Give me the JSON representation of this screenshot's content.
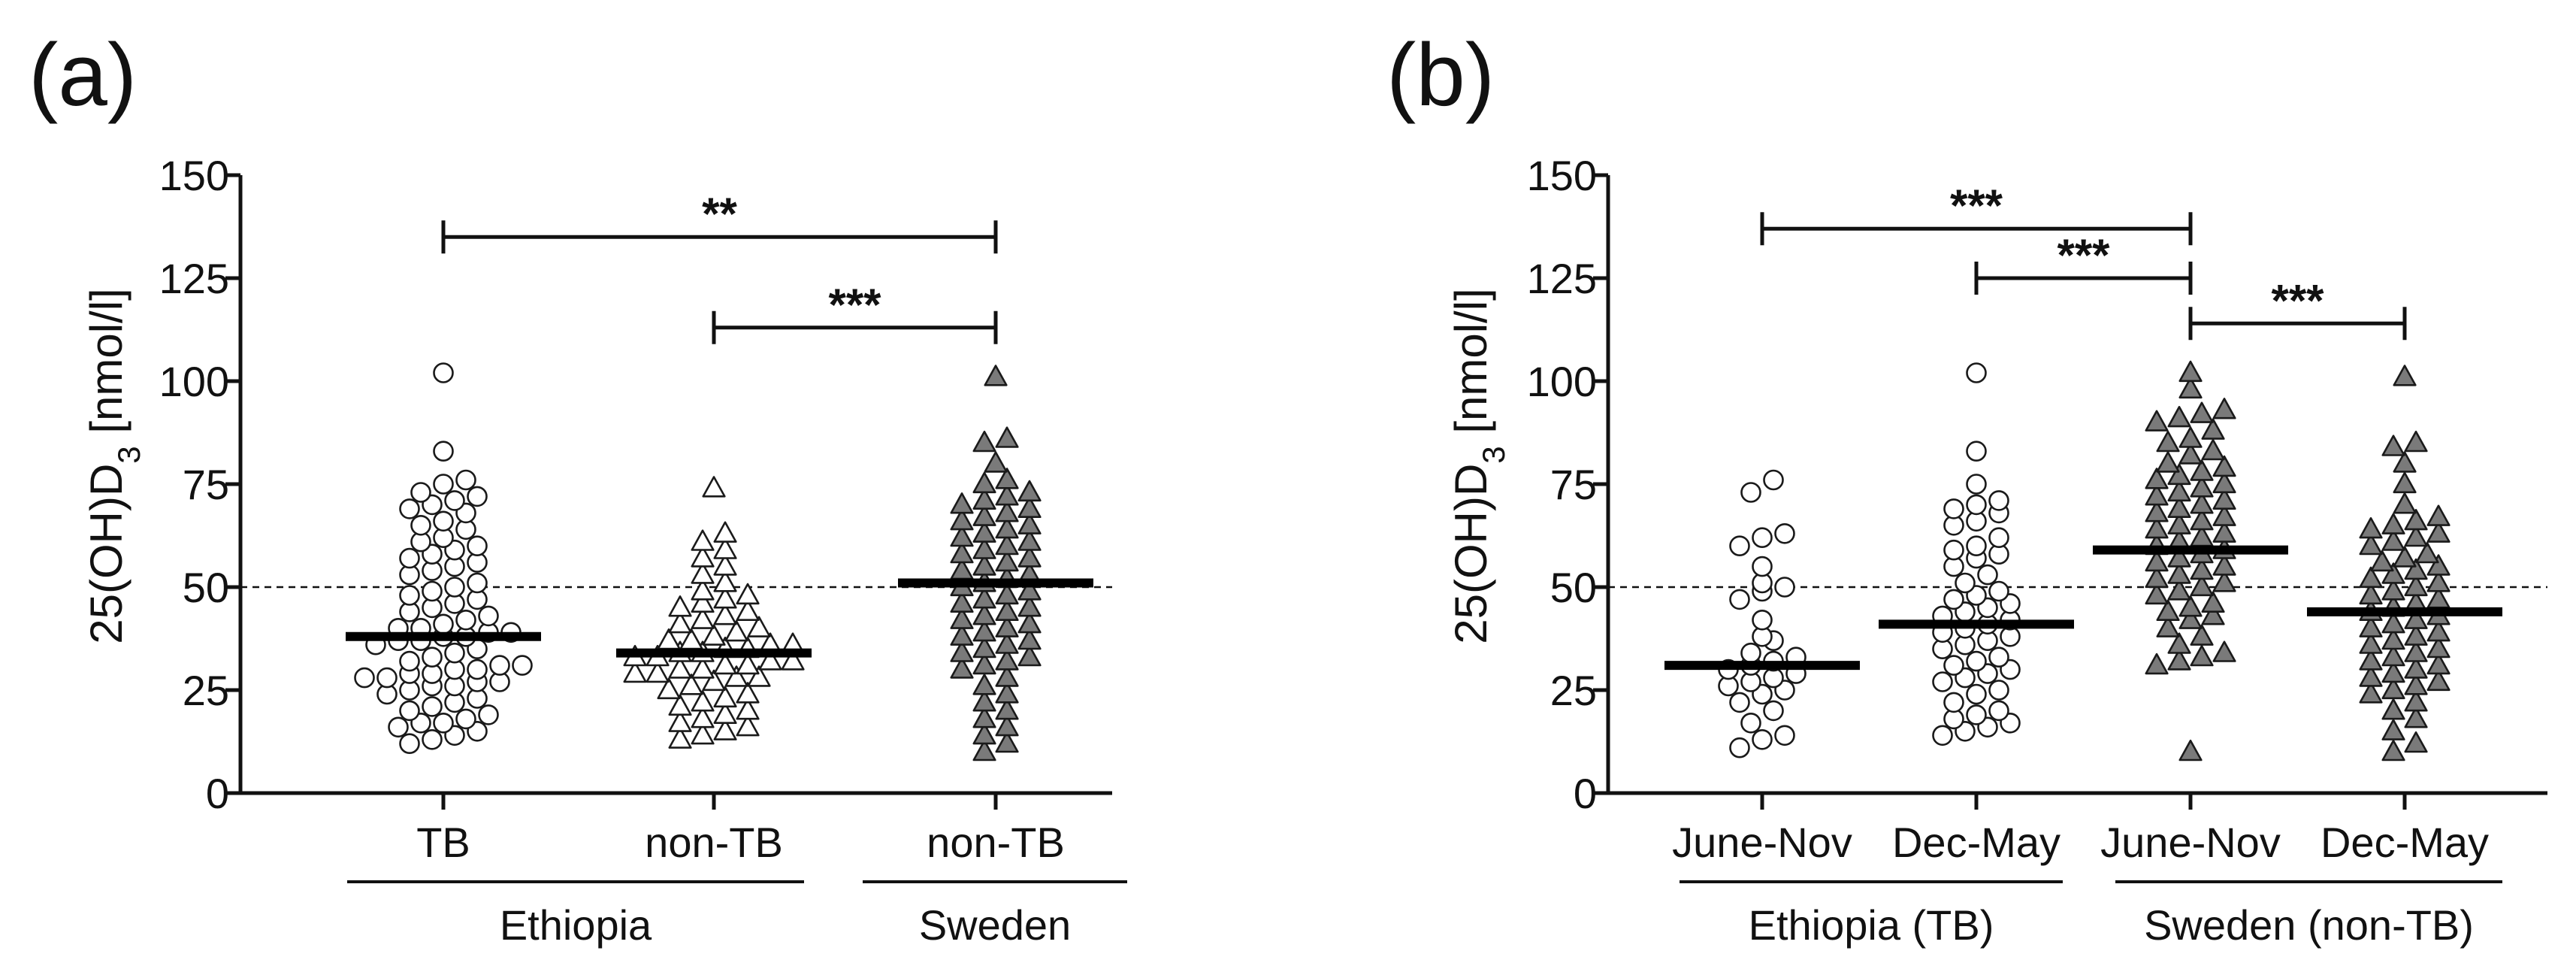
{
  "chart_data": [
    {
      "panel_label": "(a)",
      "type": "scatter",
      "chart_subtype": "dot-plot",
      "ylabel_main": "25(OH)D",
      "ylabel_sub": "3",
      "ylabel_unit": " [nmol/l]",
      "ylim": [
        0,
        150
      ],
      "yticks": [
        "0",
        "25",
        "50",
        "75",
        "100",
        "125",
        "150"
      ],
      "reference_line": 50,
      "categories": [
        "TB",
        "non-TB",
        "non-TB"
      ],
      "group_labels": [
        {
          "label": "Ethiopia",
          "from": 0,
          "to": 1
        },
        {
          "label": "Sweden",
          "from": 2,
          "to": 2
        }
      ],
      "series": [
        {
          "name": "TB",
          "marker": "circle-open",
          "median": 38,
          "values": [
            102,
            83,
            76,
            75,
            73,
            72,
            71,
            70,
            69,
            68,
            66,
            65,
            64,
            62,
            61,
            60,
            59,
            58,
            57,
            56,
            55,
            54,
            53,
            51,
            50,
            49,
            48,
            47,
            46,
            45,
            44,
            43,
            42,
            41,
            40,
            40,
            39,
            39,
            38,
            38,
            37,
            37,
            36,
            35,
            34,
            33,
            32,
            31,
            31,
            30,
            30,
            29,
            29,
            28,
            28,
            27,
            27,
            26,
            26,
            25,
            24,
            23,
            22,
            21,
            20,
            19,
            18,
            17,
            17,
            16,
            15,
            14,
            13,
            12
          ]
        },
        {
          "name": "non-TB",
          "marker": "triangle-open",
          "median": 34,
          "values": [
            74,
            63,
            61,
            59,
            57,
            55,
            53,
            51,
            49,
            48,
            47,
            46,
            45,
            44,
            43,
            42,
            41,
            40,
            39,
            38,
            37,
            37,
            36,
            36,
            35,
            35,
            34,
            34,
            33,
            33,
            32,
            32,
            31,
            31,
            30,
            30,
            29,
            29,
            28,
            28,
            27,
            26,
            25,
            24,
            23,
            22,
            21,
            20,
            19,
            18,
            17,
            16,
            15,
            14,
            13
          ]
        },
        {
          "name": "non-TB",
          "marker": "triangle-filled",
          "median": 51,
          "values": [
            101,
            86,
            85,
            80,
            76,
            75,
            73,
            72,
            71,
            70,
            69,
            68,
            67,
            66,
            65,
            64,
            63,
            62,
            61,
            60,
            59,
            58,
            57,
            56,
            55,
            54,
            53,
            52,
            51,
            50,
            49,
            48,
            47,
            46,
            45,
            44,
            43,
            42,
            41,
            40,
            39,
            38,
            37,
            36,
            35,
            34,
            33,
            32,
            31,
            30,
            28,
            26,
            24,
            22,
            20,
            18,
            16,
            14,
            12,
            10
          ]
        }
      ],
      "significance": [
        {
          "from": 0,
          "to": 2,
          "y": 135,
          "label": "**"
        },
        {
          "from": 1,
          "to": 2,
          "y": 113,
          "label": "***"
        }
      ]
    },
    {
      "panel_label": "(b)",
      "type": "scatter",
      "chart_subtype": "dot-plot",
      "ylabel_main": "25(OH)D",
      "ylabel_sub": "3",
      "ylabel_unit": " [nmol/l]",
      "ylim": [
        0,
        150
      ],
      "yticks": [
        "0",
        "25",
        "50",
        "75",
        "100",
        "125",
        "150"
      ],
      "reference_line": 50,
      "categories": [
        "June-Nov",
        "Dec-May",
        "June-Nov",
        "Dec-May"
      ],
      "group_labels": [
        {
          "label": "Ethiopia (TB)",
          "from": 0,
          "to": 1
        },
        {
          "label": "Sweden (non-TB)",
          "from": 2,
          "to": 3
        }
      ],
      "series": [
        {
          "name": "Ethiopia June-Nov",
          "marker": "circle-open",
          "median": 31,
          "values": [
            76,
            73,
            63,
            62,
            60,
            55,
            51,
            50,
            49,
            47,
            42,
            38,
            37,
            34,
            33,
            32,
            31,
            30,
            29,
            28,
            27,
            26,
            25,
            24,
            22,
            20,
            17,
            14,
            13,
            11
          ]
        },
        {
          "name": "Ethiopia Dec-May",
          "marker": "circle-open",
          "median": 41,
          "values": [
            102,
            83,
            75,
            71,
            70,
            69,
            68,
            66,
            65,
            62,
            60,
            59,
            58,
            57,
            55,
            53,
            51,
            49,
            48,
            47,
            46,
            45,
            44,
            43,
            42,
            41,
            40,
            39,
            38,
            37,
            36,
            35,
            33,
            32,
            31,
            30,
            29,
            28,
            27,
            25,
            24,
            22,
            20,
            19,
            18,
            17,
            16,
            15,
            14
          ]
        },
        {
          "name": "Sweden June-Nov",
          "marker": "triangle-filled",
          "median": 59,
          "values": [
            102,
            98,
            93,
            92,
            91,
            90,
            88,
            86,
            85,
            83,
            82,
            80,
            79,
            78,
            77,
            76,
            75,
            74,
            73,
            72,
            71,
            70,
            69,
            68,
            67,
            66,
            65,
            64,
            63,
            62,
            61,
            60,
            59,
            58,
            57,
            56,
            55,
            54,
            53,
            52,
            51,
            50,
            49,
            48,
            46,
            45,
            44,
            43,
            42,
            40,
            38,
            36,
            34,
            33,
            32,
            31,
            10
          ]
        },
        {
          "name": "Sweden Dec-May",
          "marker": "triangle-filled",
          "median": 44,
          "values": [
            101,
            85,
            84,
            80,
            75,
            70,
            67,
            66,
            65,
            64,
            63,
            62,
            61,
            60,
            58,
            57,
            56,
            55,
            54,
            53,
            52,
            51,
            50,
            49,
            48,
            47,
            46,
            45,
            44,
            43,
            42,
            41,
            40,
            39,
            38,
            37,
            36,
            35,
            34,
            33,
            32,
            31,
            30,
            29,
            28,
            27,
            26,
            25,
            24,
            22,
            20,
            18,
            15,
            12,
            10
          ]
        }
      ],
      "significance": [
        {
          "from": 0,
          "to": 2,
          "y": 137,
          "label": "***"
        },
        {
          "from": 1,
          "to": 2,
          "y": 125,
          "label": "***"
        },
        {
          "from": 2,
          "to": 3,
          "y": 114,
          "label": "***"
        }
      ]
    }
  ],
  "colors": {
    "open_fill": "#ffffff",
    "filled_fill": "#7a7a7a",
    "marker_stroke": "#1a1a1a",
    "median": "#000000"
  }
}
